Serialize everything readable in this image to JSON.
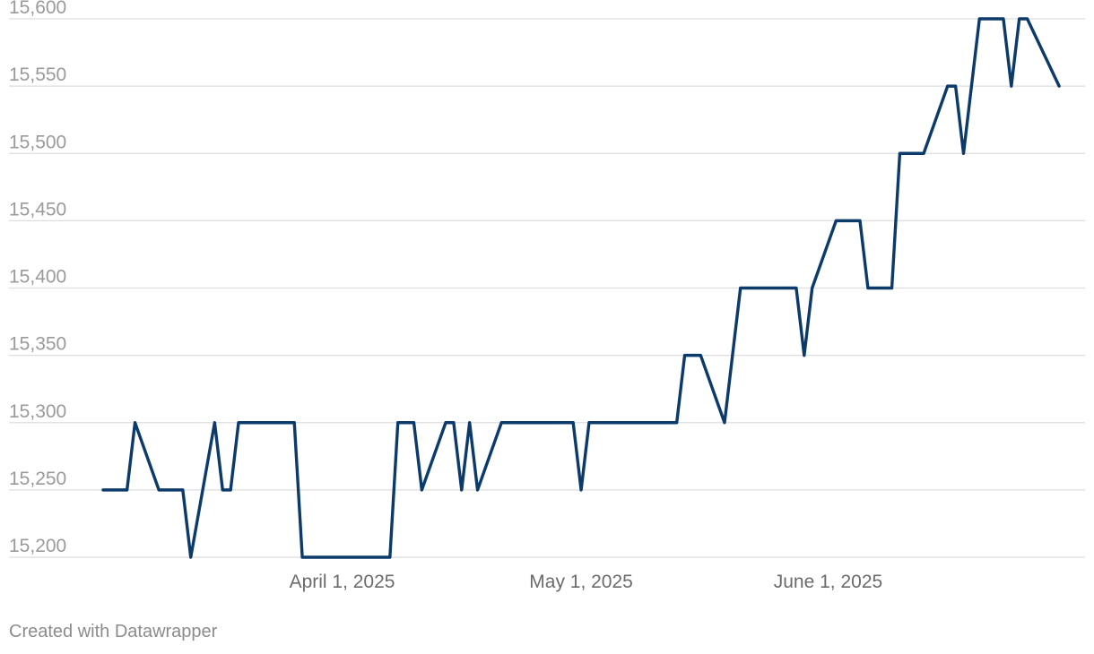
{
  "chart_data": {
    "type": "line",
    "title": "",
    "xlabel": "",
    "ylabel": "",
    "ylim": [
      15200,
      15600
    ],
    "yticks": [
      15200,
      15250,
      15300,
      15350,
      15400,
      15450,
      15500,
      15550,
      15600
    ],
    "ytick_labels": [
      "15,200",
      "15,250",
      "15,300",
      "15,350",
      "15,400",
      "15,450",
      "15,500",
      "15,550",
      "15,600"
    ],
    "xlim": [
      "2025-03-02",
      "2025-07-01"
    ],
    "xticks": [
      "2025-04-01",
      "2025-05-01",
      "2025-06-01"
    ],
    "xtick_labels": [
      "April 1, 2025",
      "May 1, 2025",
      "June 1, 2025"
    ],
    "grid": true,
    "series": [
      {
        "color": "#0b3a6b",
        "points": [
          [
            "2025-03-02",
            15250
          ],
          [
            "2025-03-05",
            15250
          ],
          [
            "2025-03-06",
            15300
          ],
          [
            "2025-03-09",
            15250
          ],
          [
            "2025-03-12",
            15250
          ],
          [
            "2025-03-13",
            15200
          ],
          [
            "2025-03-16",
            15300
          ],
          [
            "2025-03-17",
            15250
          ],
          [
            "2025-03-18",
            15250
          ],
          [
            "2025-03-19",
            15300
          ],
          [
            "2025-03-26",
            15300
          ],
          [
            "2025-03-27",
            15200
          ],
          [
            "2025-04-07",
            15200
          ],
          [
            "2025-04-08",
            15300
          ],
          [
            "2025-04-10",
            15300
          ],
          [
            "2025-04-11",
            15250
          ],
          [
            "2025-04-14",
            15300
          ],
          [
            "2025-04-15",
            15300
          ],
          [
            "2025-04-16",
            15250
          ],
          [
            "2025-04-17",
            15300
          ],
          [
            "2025-04-18",
            15250
          ],
          [
            "2025-04-21",
            15300
          ],
          [
            "2025-04-30",
            15300
          ],
          [
            "2025-05-01",
            15250
          ],
          [
            "2025-05-02",
            15300
          ],
          [
            "2025-05-13",
            15300
          ],
          [
            "2025-05-14",
            15350
          ],
          [
            "2025-05-16",
            15350
          ],
          [
            "2025-05-19",
            15300
          ],
          [
            "2025-05-21",
            15400
          ],
          [
            "2025-05-28",
            15400
          ],
          [
            "2025-05-29",
            15350
          ],
          [
            "2025-05-30",
            15400
          ],
          [
            "2025-06-02",
            15450
          ],
          [
            "2025-06-05",
            15450
          ],
          [
            "2025-06-06",
            15400
          ],
          [
            "2025-06-09",
            15400
          ],
          [
            "2025-06-10",
            15500
          ],
          [
            "2025-06-13",
            15500
          ],
          [
            "2025-06-16",
            15550
          ],
          [
            "2025-06-17",
            15550
          ],
          [
            "2025-06-18",
            15500
          ],
          [
            "2025-06-20",
            15600
          ],
          [
            "2025-06-23",
            15600
          ],
          [
            "2025-06-24",
            15550
          ],
          [
            "2025-06-25",
            15600
          ],
          [
            "2025-06-26",
            15600
          ],
          [
            "2025-06-30",
            15550
          ]
        ]
      }
    ]
  },
  "footer": {
    "credit": "Created with Datawrapper"
  }
}
